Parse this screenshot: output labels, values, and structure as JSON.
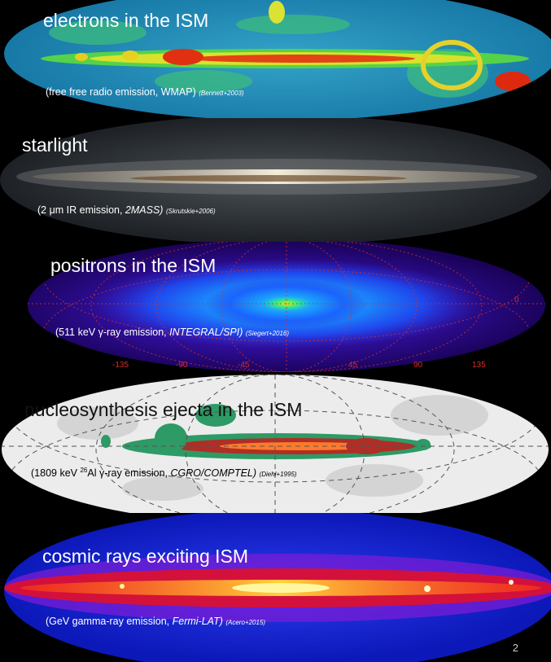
{
  "panels": [
    {
      "title": "electrons in the ISM",
      "caption": "(free free radio emission, WMAP)",
      "citation": "(Bennett+2003)"
    },
    {
      "title": "starlight",
      "caption_pre": "(2 μm IR emission, ",
      "caption_italic": "2MASS)",
      "citation": "(Skrutskie+2006)"
    },
    {
      "title": "positrons in the ISM",
      "caption_pre": "(511 keV γ-ray emission, ",
      "caption_italic": "INTEGRAL/SPI)",
      "citation": "(Siegert+2016)",
      "longitude_ticks": [
        "-135",
        "-90",
        "-45",
        "45",
        "90",
        "135"
      ],
      "latitude_tick": "0"
    },
    {
      "title": "nucleosynthesis ejecta in the ISM",
      "caption_pre": "(1809 keV ",
      "caption_sup": "26",
      "caption_mid": "Al γ-ray  emission, ",
      "caption_italic": "CGRO/COMPTEL)",
      "citation": "(Diehl+1995)"
    },
    {
      "title": "cosmic rays exciting ISM",
      "caption_pre": "(GeV gamma-ray emission, ",
      "caption_italic": "Fermi-LAT)",
      "citation": "(Acero+2015)"
    }
  ],
  "page_number": "2",
  "colors": {
    "wmap_background": "#1f8fb8",
    "starlight_background": "#2a2f33",
    "integral_background": "#2a0a8a",
    "comptel_background": "#eeeeee",
    "fermi_background": "#1a2fd6"
  }
}
